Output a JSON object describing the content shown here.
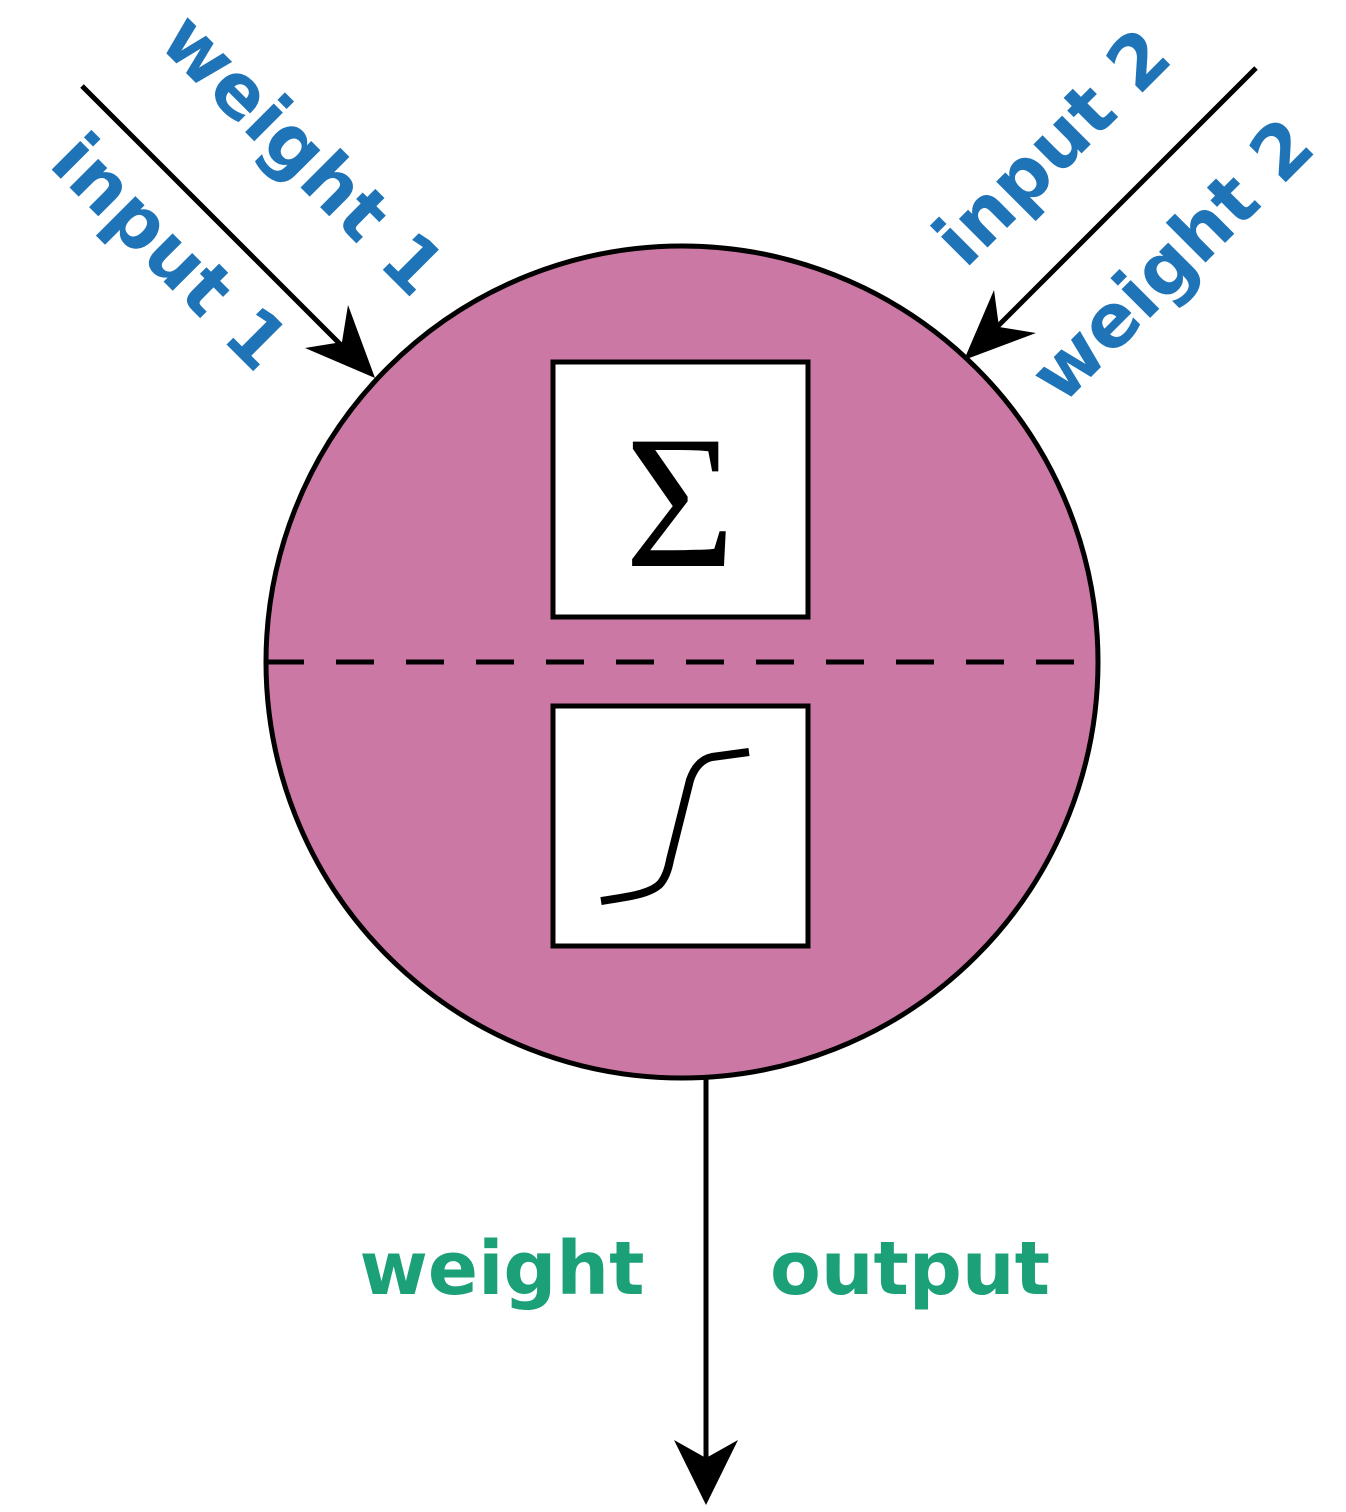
{
  "inputs": [
    {
      "input_label": "input 1",
      "weight_label": "weight 1"
    },
    {
      "input_label": "input 2",
      "weight_label": "weight 2"
    }
  ],
  "neuron": {
    "sum_symbol": "Σ",
    "activation_icon": "sigmoid-curve-icon"
  },
  "output": {
    "weight_label": "weight",
    "output_label": "output"
  },
  "colors": {
    "neuron_fill": "#CB78A5",
    "input_label_color": "#1F74B8",
    "output_label_color": "#1BA078",
    "stroke": "#000000"
  }
}
